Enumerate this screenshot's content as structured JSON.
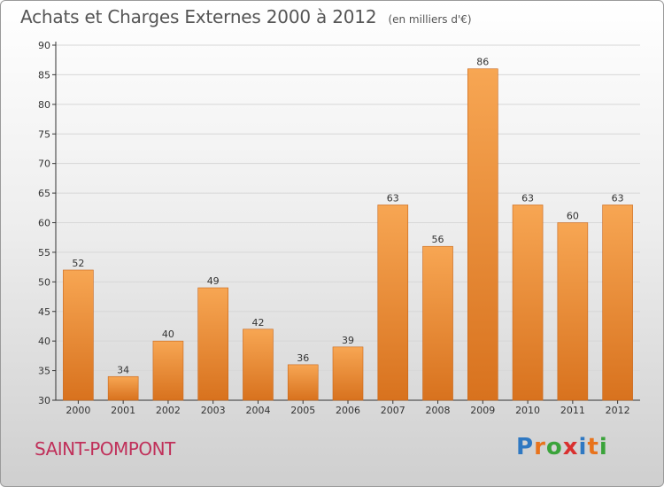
{
  "header": {
    "title": "Achats et Charges Externes 2000 à 2012",
    "unit": "(en milliers d'€)"
  },
  "footer": {
    "town": "SAINT-POMPONT"
  },
  "brand": {
    "letters": [
      "P",
      "r",
      "o",
      "x",
      "i",
      "t",
      "i"
    ],
    "colors": [
      "#2f78c2",
      "#e8731c",
      "#3aa33a",
      "#d9302f",
      "#2f78c2",
      "#e8731c",
      "#3aa33a"
    ]
  },
  "colors": {
    "bar_top": "#f7a653",
    "bar_bottom": "#d8721e",
    "bar_edge": "#c8661a"
  },
  "chart_data": {
    "type": "bar",
    "title": "Achats et Charges Externes 2000 à 2012",
    "categories": [
      "2000",
      "2001",
      "2002",
      "2003",
      "2004",
      "2005",
      "2006",
      "2007",
      "2008",
      "2009",
      "2010",
      "2011",
      "2012"
    ],
    "values": [
      52,
      34,
      40,
      49,
      42,
      36,
      39,
      63,
      56,
      86,
      63,
      60,
      63
    ],
    "xlabel": "",
    "ylabel": "",
    "ylim": [
      30,
      90
    ],
    "yticks": [
      30,
      35,
      40,
      45,
      50,
      55,
      60,
      65,
      70,
      75,
      80,
      85,
      90
    ],
    "grid": true,
    "legend": "none"
  }
}
